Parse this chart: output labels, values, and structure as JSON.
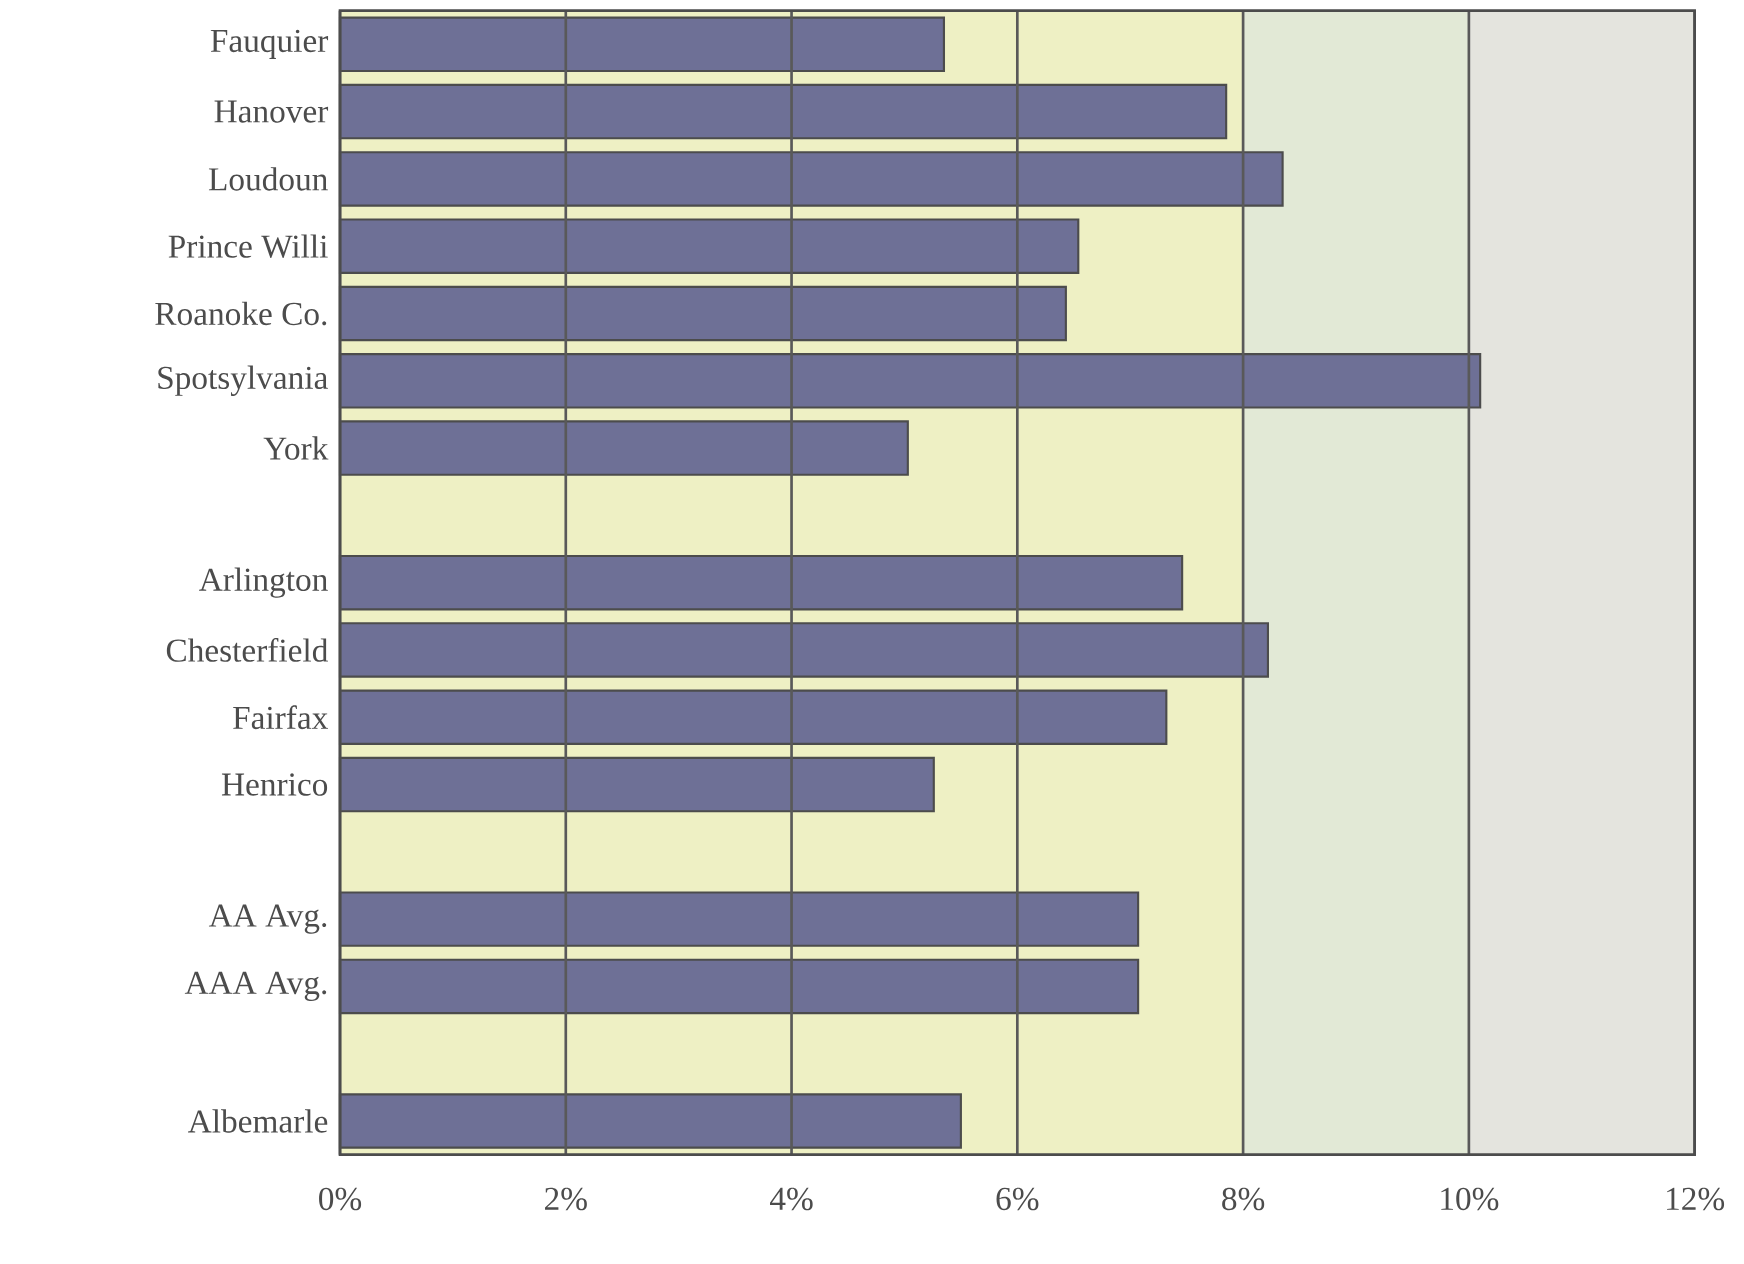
{
  "chart_data": {
    "type": "bar",
    "orientation": "horizontal",
    "categories": [
      "Fauquier",
      "Hanover",
      "Loudoun",
      "Prince Willi",
      "Roanoke Co.",
      "Spotsylvania",
      "York",
      null,
      "Arlington",
      "Chesterfield",
      "Fairfax",
      "Henrico",
      null,
      "AA Avg.",
      "AAA Avg.",
      null,
      "Albemarle"
    ],
    "values": [
      5.35,
      7.85,
      8.35,
      6.54,
      6.43,
      10.1,
      5.03,
      null,
      7.46,
      8.22,
      7.32,
      5.26,
      null,
      7.07,
      7.07,
      null,
      5.5
    ],
    "color": "#6e7096",
    "xlim": [
      0,
      12
    ],
    "xticks": [
      {
        "value": 0,
        "label": "0%"
      },
      {
        "value": 2,
        "label": "2%"
      },
      {
        "value": 4,
        "label": "4%"
      },
      {
        "value": 6,
        "label": "6%"
      },
      {
        "value": 8,
        "label": "8%"
      },
      {
        "value": 10,
        "label": "10%"
      },
      {
        "value": 12,
        "label": "12%"
      }
    ],
    "bands": [
      {
        "axis": "x",
        "from": 0,
        "to": 8,
        "color": "#eef0c4"
      },
      {
        "axis": "x",
        "from": 8,
        "to": 10,
        "color": "#e2e9d6"
      },
      {
        "axis": "x",
        "from": 10,
        "to": 12,
        "color": "#e4e4de"
      }
    ],
    "grid": "x"
  }
}
